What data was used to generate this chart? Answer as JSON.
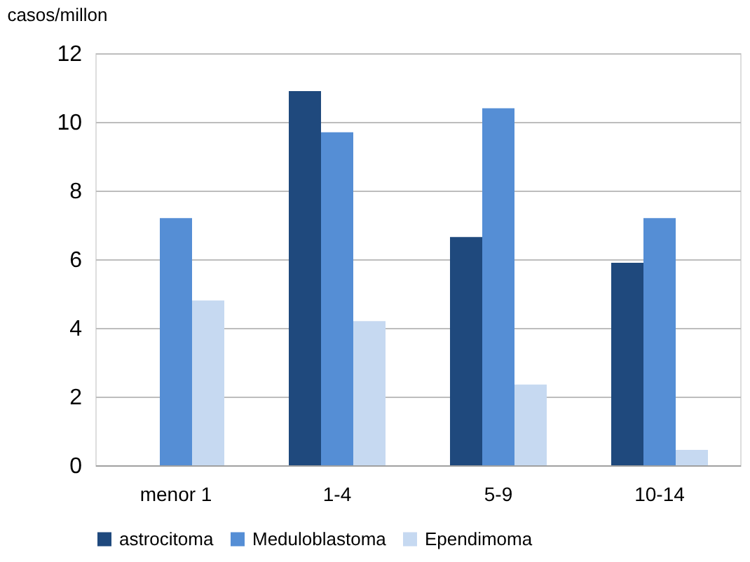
{
  "chart_data": {
    "type": "bar",
    "ylabel": "casos/millon",
    "categories": [
      "menor 1",
      "1-4",
      "5-9",
      "10-14"
    ],
    "series": [
      {
        "name": "astrocitoma",
        "color": "#1f497d",
        "values": [
          null,
          10.9,
          6.65,
          5.9
        ]
      },
      {
        "name": "Meduloblastoma",
        "color": "#558ed5",
        "values": [
          7.2,
          9.7,
          10.4,
          7.2
        ]
      },
      {
        "name": "Ependimoma",
        "color": "#c6d9f1",
        "values": [
          4.8,
          4.2,
          2.35,
          0.45
        ]
      }
    ],
    "ylim": [
      0,
      12
    ],
    "yticks": [
      0,
      2,
      4,
      6,
      8,
      10,
      12
    ],
    "grid": "y",
    "legend": "bottom"
  }
}
